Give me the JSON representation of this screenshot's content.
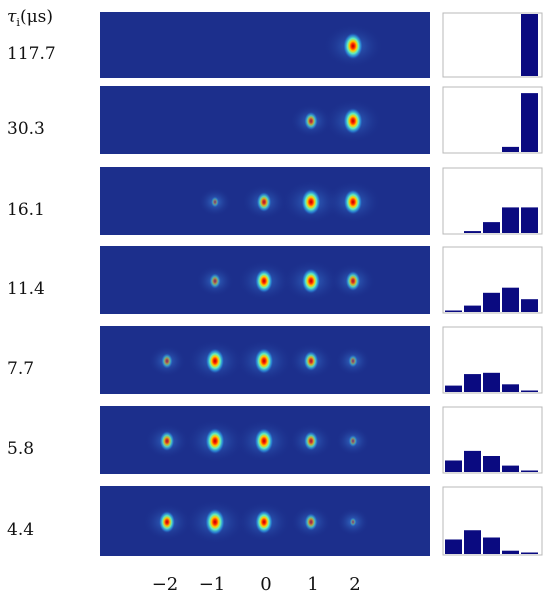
{
  "header": {
    "tau_symbol": "τ",
    "tau_subscript": "i",
    "tau_unit": "(μs)"
  },
  "rows": [
    {
      "tau": "117.7",
      "spots": [
        0,
        0,
        0,
        0,
        1.0
      ],
      "hist": [
        0,
        0,
        0,
        0,
        1.0
      ]
    },
    {
      "tau": "30.3",
      "spots": [
        0,
        0,
        0,
        0.35,
        0.95
      ],
      "hist": [
        0,
        0,
        0,
        0.08,
        0.92
      ]
    },
    {
      "tau": "16.1",
      "spots": [
        0,
        0.05,
        0.45,
        0.95,
        0.85
      ],
      "hist": [
        0,
        0.03,
        0.17,
        0.4,
        0.4
      ]
    },
    {
      "tau": "11.4",
      "spots": [
        0,
        0.2,
        0.75,
        0.85,
        0.45
      ],
      "hist": [
        0.02,
        0.1,
        0.3,
        0.38,
        0.2
      ]
    },
    {
      "tau": "7.7",
      "spots": [
        0.2,
        0.85,
        0.9,
        0.45,
        0.1
      ],
      "hist": [
        0.1,
        0.28,
        0.3,
        0.12,
        0.02
      ]
    },
    {
      "tau": "5.8",
      "spots": [
        0.45,
        0.95,
        0.9,
        0.4,
        0.08
      ],
      "hist": [
        0.18,
        0.33,
        0.25,
        0.1,
        0.02
      ]
    },
    {
      "tau": "4.4",
      "spots": [
        0.6,
        1.0,
        0.75,
        0.3,
        0.02
      ],
      "hist": [
        0.22,
        0.36,
        0.25,
        0.05,
        0.01
      ]
    }
  ],
  "x_axis": {
    "ticks": [
      "−2",
      "−1",
      "0",
      "1",
      "2"
    ]
  },
  "colors": {
    "panel_bg": "#1c2f8c",
    "bar": "#0a0a80",
    "hist_frame": "#b8b8b8"
  }
}
